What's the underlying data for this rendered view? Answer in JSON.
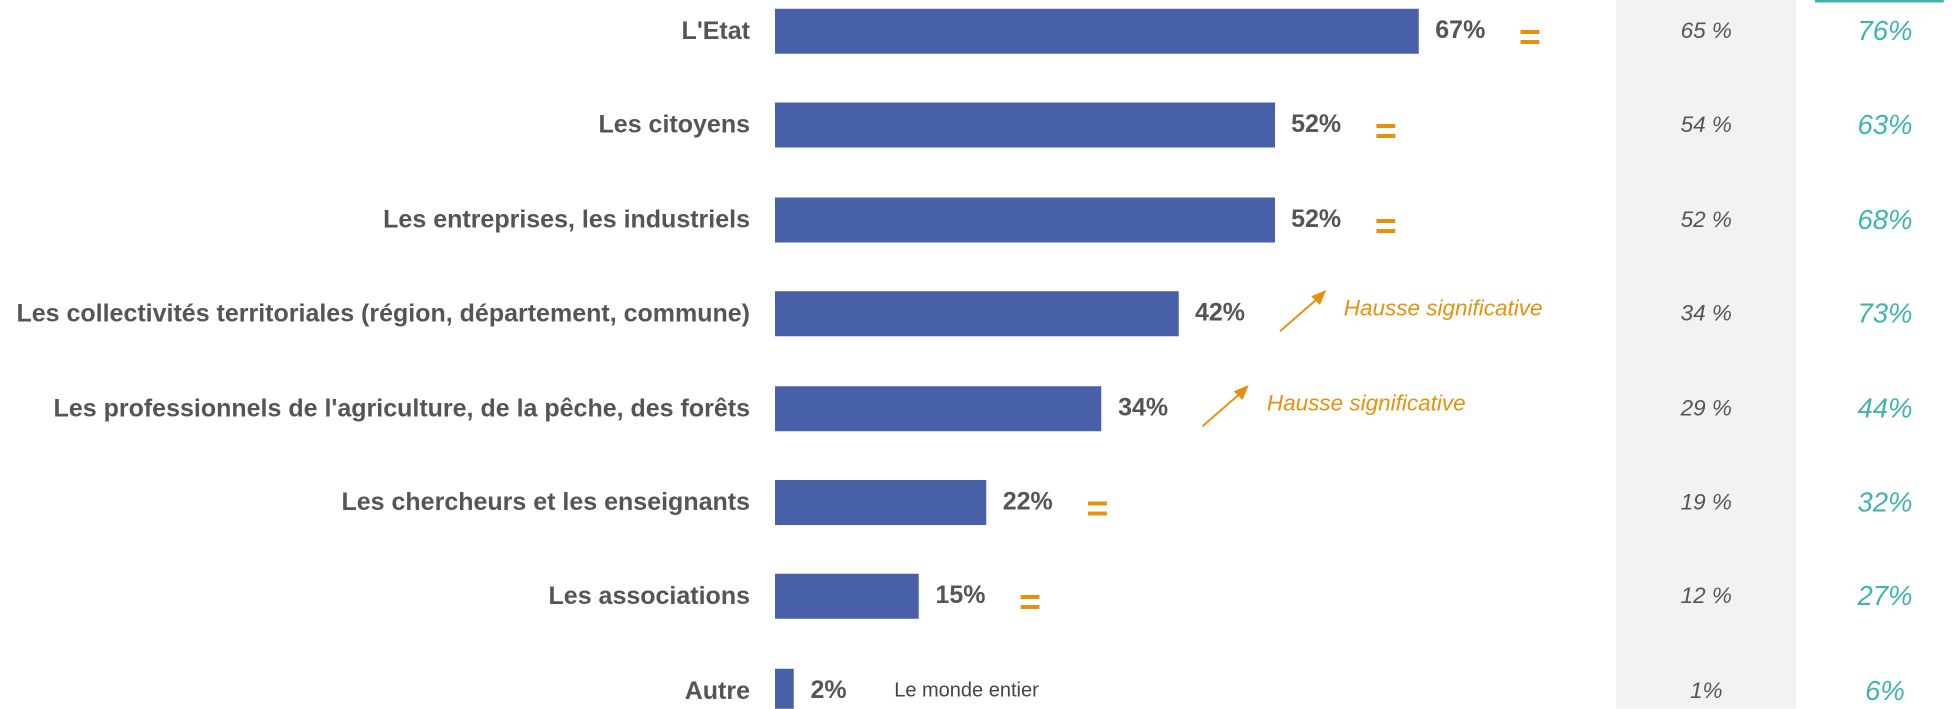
{
  "chart_data": {
    "type": "bar",
    "orientation": "horizontal",
    "categories": [
      "L'Etat",
      "Les citoyens",
      "Les entreprises, les industriels",
      "Les collectivités territoriales (région, département, commune)",
      "Les professionnels de l'agriculture, de la pêche, des forêts",
      "Les chercheurs et les enseignants",
      "Les associations",
      "Autre"
    ],
    "values": [
      67,
      52,
      52,
      42,
      34,
      22,
      15,
      2
    ],
    "value_labels": [
      "67%",
      "52%",
      "52%",
      "42%",
      "34%",
      "22%",
      "15%",
      "2%"
    ],
    "color": "#4860a8",
    "trends": [
      {
        "symbol": "="
      },
      {
        "symbol": "="
      },
      {
        "symbol": "="
      },
      {
        "label": "Hausse significative"
      },
      {
        "label": "Hausse significative"
      },
      {
        "symbol": "="
      },
      {
        "symbol": "="
      },
      null
    ],
    "trend_color": "#e8900c",
    "annotations": [
      null,
      null,
      null,
      null,
      null,
      null,
      null,
      "Le monde entier"
    ],
    "columns": [
      {
        "values": [
          65,
          54,
          52,
          34,
          29,
          19,
          12,
          1
        ],
        "value_labels": [
          "65 %",
          "54 %",
          "52 %",
          "34 %",
          "29 %",
          "19 %",
          "12 %",
          "1%"
        ],
        "color": "#555555",
        "background": "#f2f2f2"
      },
      {
        "values": [
          76,
          63,
          68,
          73,
          44,
          32,
          27,
          6
        ],
        "value_labels": [
          "76%",
          "63%",
          "68%",
          "73%",
          "44%",
          "32%",
          "27%",
          "6%"
        ],
        "color": "#3fb3ae"
      }
    ]
  }
}
